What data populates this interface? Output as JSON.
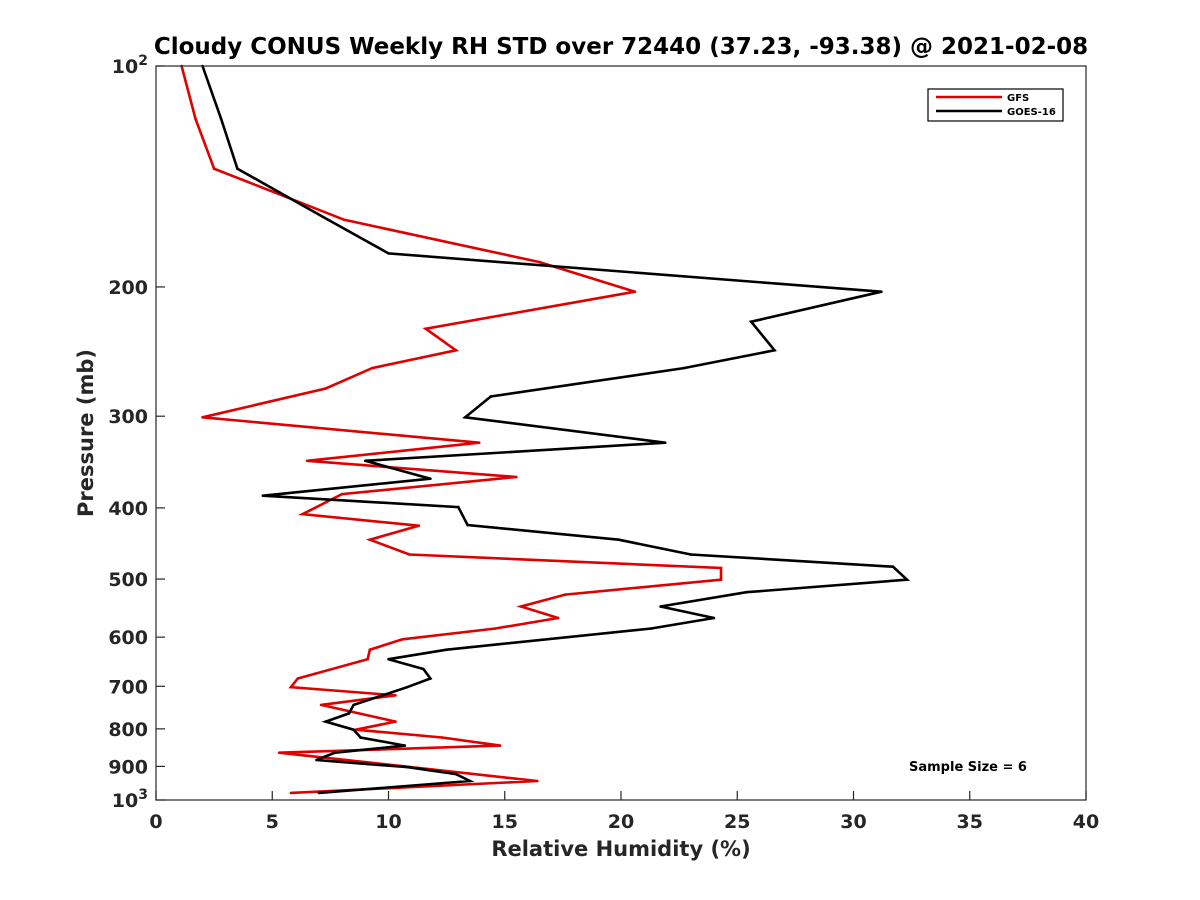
{
  "chart_data": {
    "type": "line",
    "title": "Cloudy CONUS Weekly RH STD over 72440 (37.23, -93.38) @ 2021-02-08",
    "xlabel": "Relative Humidity (%)",
    "ylabel": "Pressure (mb)",
    "xlim": [
      0,
      40
    ],
    "ylim": [
      100,
      1000
    ],
    "yscale": "log",
    "y_reversed": true,
    "x_ticks": [
      0,
      5,
      10,
      15,
      20,
      25,
      30,
      35,
      40
    ],
    "x_tick_labels": [
      "0",
      "5",
      "10",
      "15",
      "20",
      "25",
      "30",
      "35",
      "40"
    ],
    "y_ticks": [
      100,
      200,
      300,
      400,
      500,
      600,
      700,
      800,
      900,
      1000
    ],
    "y_tick_labels": [
      {
        "base": "10",
        "exp": "2"
      },
      {
        "base": "200",
        "exp": ""
      },
      {
        "base": "300",
        "exp": ""
      },
      {
        "base": "400",
        "exp": ""
      },
      {
        "base": "500",
        "exp": ""
      },
      {
        "base": "600",
        "exp": ""
      },
      {
        "base": "700",
        "exp": ""
      },
      {
        "base": "800",
        "exp": ""
      },
      {
        "base": "900",
        "exp": ""
      },
      {
        "base": "10",
        "exp": "3"
      }
    ],
    "grid": false,
    "legend_position": "top-right",
    "annotation": "Sample Size = 6",
    "series": [
      {
        "name": "GFS",
        "color": "#e00000",
        "points": [
          {
            "x": 1.1,
            "y": 100
          },
          {
            "x": 1.7,
            "y": 118
          },
          {
            "x": 2.5,
            "y": 138
          },
          {
            "x": 8.1,
            "y": 162
          },
          {
            "x": 16.5,
            "y": 185
          },
          {
            "x": 20.6,
            "y": 203
          },
          {
            "x": 11.6,
            "y": 228
          },
          {
            "x": 12.9,
            "y": 244
          },
          {
            "x": 9.3,
            "y": 258
          },
          {
            "x": 7.3,
            "y": 275
          },
          {
            "x": 2.0,
            "y": 301
          },
          {
            "x": 13.9,
            "y": 326
          },
          {
            "x": 6.5,
            "y": 345
          },
          {
            "x": 15.5,
            "y": 363
          },
          {
            "x": 8.0,
            "y": 383
          },
          {
            "x": 6.3,
            "y": 408
          },
          {
            "x": 11.3,
            "y": 423
          },
          {
            "x": 9.2,
            "y": 442
          },
          {
            "x": 10.9,
            "y": 463
          },
          {
            "x": 24.3,
            "y": 483
          },
          {
            "x": 24.3,
            "y": 501
          },
          {
            "x": 17.6,
            "y": 525
          },
          {
            "x": 15.7,
            "y": 545
          },
          {
            "x": 17.3,
            "y": 565
          },
          {
            "x": 14.6,
            "y": 584
          },
          {
            "x": 10.6,
            "y": 604
          },
          {
            "x": 9.2,
            "y": 624
          },
          {
            "x": 9.1,
            "y": 643
          },
          {
            "x": 6.1,
            "y": 683
          },
          {
            "x": 5.8,
            "y": 702
          },
          {
            "x": 10.3,
            "y": 720
          },
          {
            "x": 7.1,
            "y": 742
          },
          {
            "x": 10.3,
            "y": 782
          },
          {
            "x": 8.6,
            "y": 802
          },
          {
            "x": 12.3,
            "y": 822
          },
          {
            "x": 14.8,
            "y": 843
          },
          {
            "x": 5.3,
            "y": 862
          },
          {
            "x": 16.4,
            "y": 942
          },
          {
            "x": 5.8,
            "y": 978
          }
        ]
      },
      {
        "name": "GOES-16",
        "color": "#000000",
        "points": [
          {
            "x": 2.0,
            "y": 100
          },
          {
            "x": 2.8,
            "y": 118
          },
          {
            "x": 3.5,
            "y": 138
          },
          {
            "x": 7.4,
            "y": 162
          },
          {
            "x": 10.0,
            "y": 180
          },
          {
            "x": 31.2,
            "y": 203
          },
          {
            "x": 25.6,
            "y": 223
          },
          {
            "x": 26.6,
            "y": 244
          },
          {
            "x": 22.7,
            "y": 258
          },
          {
            "x": 14.4,
            "y": 282
          },
          {
            "x": 13.3,
            "y": 301
          },
          {
            "x": 21.9,
            "y": 326
          },
          {
            "x": 9.0,
            "y": 345
          },
          {
            "x": 11.8,
            "y": 365
          },
          {
            "x": 4.6,
            "y": 385
          },
          {
            "x": 13.0,
            "y": 399
          },
          {
            "x": 13.4,
            "y": 422
          },
          {
            "x": 19.9,
            "y": 442
          },
          {
            "x": 23.0,
            "y": 463
          },
          {
            "x": 31.7,
            "y": 481
          },
          {
            "x": 32.3,
            "y": 501
          },
          {
            "x": 25.4,
            "y": 521
          },
          {
            "x": 21.7,
            "y": 545
          },
          {
            "x": 24.0,
            "y": 565
          },
          {
            "x": 21.3,
            "y": 584
          },
          {
            "x": 12.5,
            "y": 624
          },
          {
            "x": 10.0,
            "y": 643
          },
          {
            "x": 11.5,
            "y": 663
          },
          {
            "x": 11.8,
            "y": 683
          },
          {
            "x": 10.8,
            "y": 702
          },
          {
            "x": 8.5,
            "y": 742
          },
          {
            "x": 8.3,
            "y": 762
          },
          {
            "x": 7.3,
            "y": 782
          },
          {
            "x": 8.5,
            "y": 802
          },
          {
            "x": 8.8,
            "y": 822
          },
          {
            "x": 10.7,
            "y": 843
          },
          {
            "x": 7.7,
            "y": 862
          },
          {
            "x": 6.9,
            "y": 882
          },
          {
            "x": 10.8,
            "y": 902
          },
          {
            "x": 12.9,
            "y": 922
          },
          {
            "x": 13.5,
            "y": 942
          },
          {
            "x": 7.0,
            "y": 978
          }
        ]
      }
    ]
  }
}
